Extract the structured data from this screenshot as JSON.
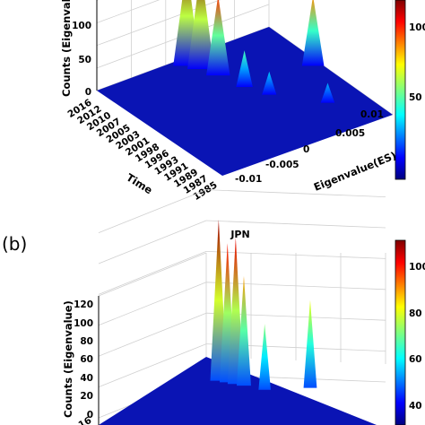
{
  "colormap": "jet",
  "colors": {
    "floor": "#0a14b4",
    "grid": "#d0d0d0",
    "pane": "#ffffff"
  },
  "chart_data": [
    {
      "panel": "(a)",
      "type": "surface3d",
      "title": "",
      "xlabel": "Eigenvalue(ES)",
      "ylabel": "Time",
      "zlabel": "Counts (Eigenvalue",
      "x_ticks": [
        "-0.01",
        "-0.005",
        "0",
        "0.005",
        "0.01"
      ],
      "y_ticks": [
        "2016",
        "2012",
        "2010",
        "2007",
        "2005",
        "2003",
        "2001",
        "1998",
        "1996",
        "1993",
        "1991",
        "1989",
        "1987",
        "1985"
      ],
      "z_ticks": [
        "0",
        "50",
        "100"
      ],
      "colorbar_ticks": [
        "50",
        "100"
      ],
      "peaks": [
        {
          "eigenvalue": -0.0005,
          "time": "2014",
          "count": 150
        },
        {
          "eigenvalue": 0.0002,
          "time": "2012",
          "count": 150
        },
        {
          "eigenvalue": 0.0008,
          "time": "2009",
          "count": 120
        },
        {
          "eigenvalue": 0.0015,
          "time": "2004",
          "count": 55
        },
        {
          "eigenvalue": 0.0025,
          "time": "2000",
          "count": 35
        },
        {
          "eigenvalue": 0.009,
          "time": "2003",
          "count": 105
        },
        {
          "eigenvalue": 0.006,
          "time": "1993",
          "count": 30
        }
      ]
    },
    {
      "panel": "(b)",
      "type": "surface3d",
      "title": "JPN",
      "xlabel": "",
      "ylabel": "",
      "zlabel": "Counts (Eigenvalue)",
      "z_ticks": [
        "0",
        "20",
        "40",
        "60",
        "80",
        "100",
        "120"
      ],
      "zlim": [
        0,
        120
      ],
      "colorbar_ticks": [
        "40",
        "60",
        "80",
        "100"
      ],
      "colorbar_range": [
        20,
        115
      ],
      "y_tick_partial": "16",
      "peaks": [
        {
          "eigenvalue": -0.002,
          "time": "2014",
          "count": 110
        },
        {
          "eigenvalue": -0.0012,
          "time": "2012",
          "count": 95
        },
        {
          "eigenvalue": -0.0005,
          "time": "2010",
          "count": 100
        },
        {
          "eigenvalue": 0.0002,
          "time": "2008",
          "count": 75
        },
        {
          "eigenvalue": 0.002,
          "time": "2003",
          "count": 45
        },
        {
          "eigenvalue": 0.008,
          "time": "2000",
          "count": 60
        }
      ]
    }
  ]
}
